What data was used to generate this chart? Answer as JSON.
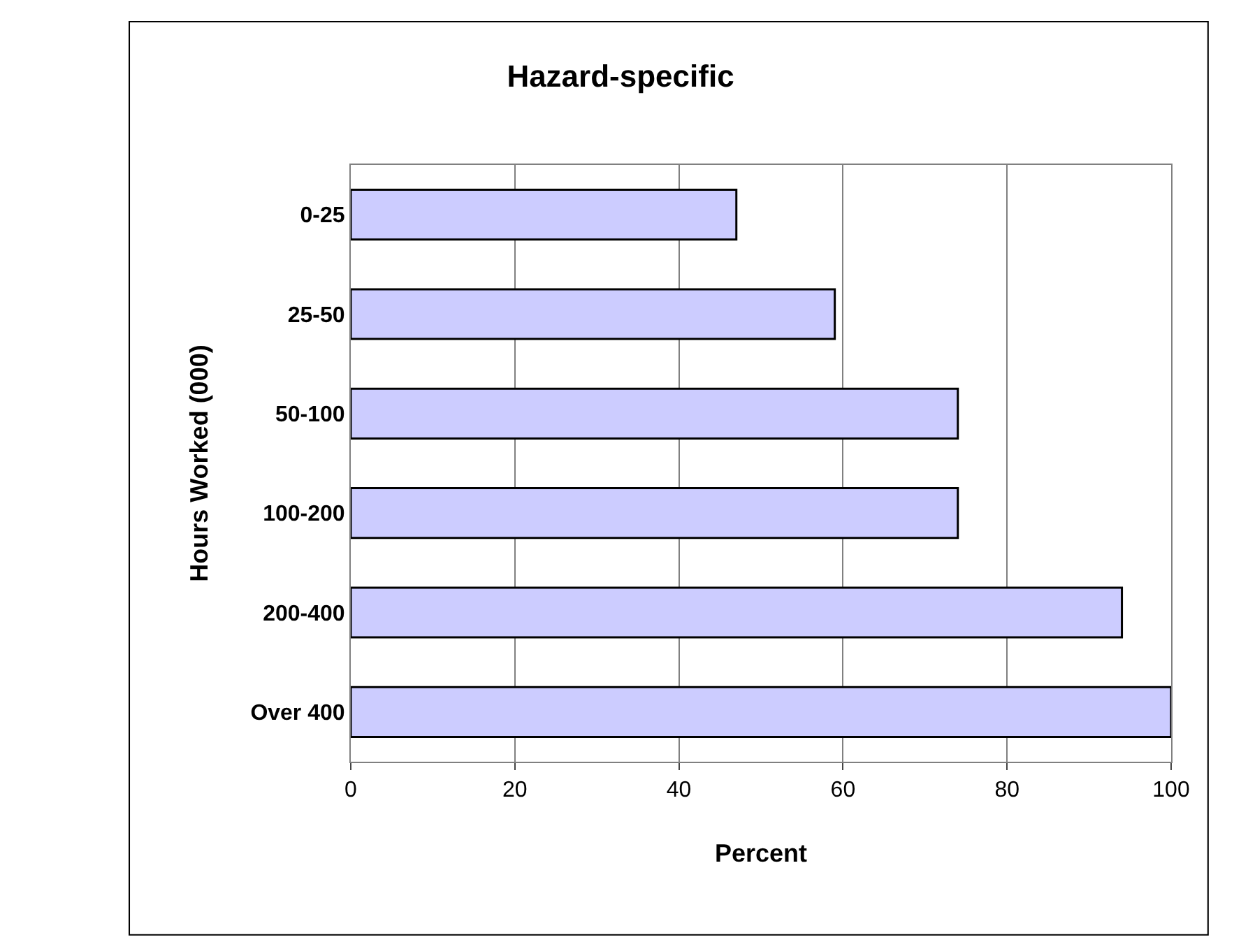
{
  "chart_data": {
    "type": "bar",
    "orientation": "horizontal",
    "title": "Hazard-specific",
    "xlabel": "Percent",
    "ylabel": "Hours Worked (000)",
    "categories": [
      "0-25",
      "25-50",
      "50-100",
      "100-200",
      "200-400",
      "Over 400"
    ],
    "values": [
      47,
      59,
      74,
      74,
      94,
      100
    ],
    "color": "#ccccff",
    "xlim": [
      0,
      100
    ],
    "xticks": [
      0,
      20,
      40,
      60,
      80,
      100
    ],
    "grid": "x",
    "legend": false
  }
}
